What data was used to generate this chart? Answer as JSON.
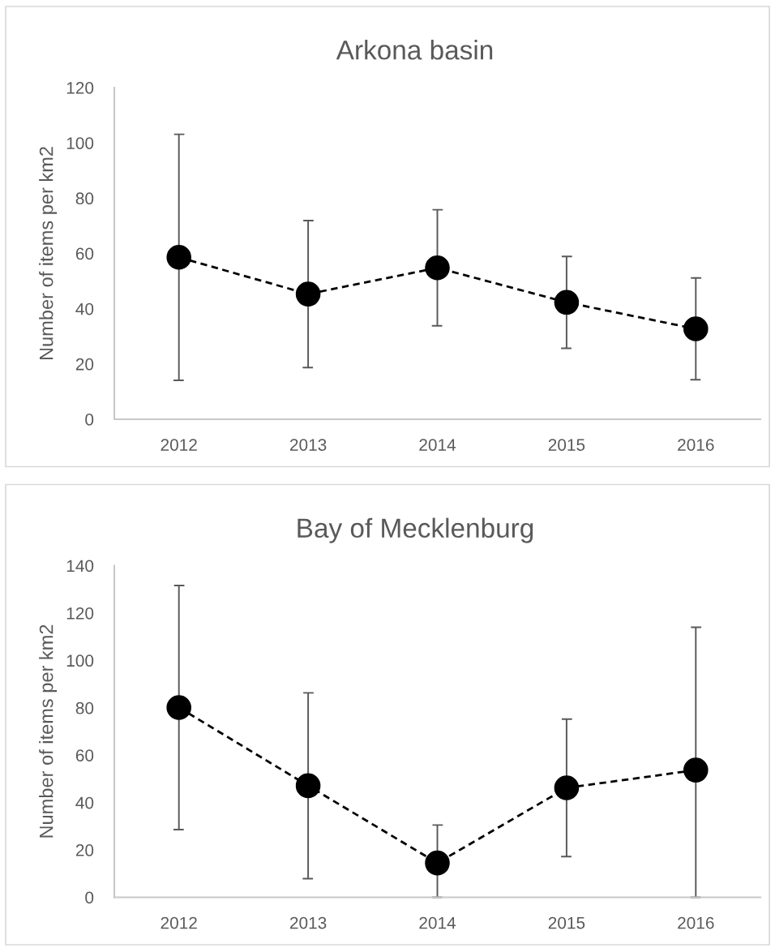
{
  "chart_data": [
    {
      "type": "line",
      "title": "Arkona basin",
      "ylabel": "Number of items per km2",
      "categories": [
        "2012",
        "2013",
        "2014",
        "2015",
        "2016"
      ],
      "series": [
        {
          "color": "#000000",
          "values": [
            58.6,
            45.3,
            54.8,
            42.3,
            32.7
          ],
          "errors": [
            44.5,
            26.6,
            21.0,
            16.6,
            18.4
          ]
        }
      ],
      "ylim": [
        0,
        120
      ],
      "yticks": [
        0,
        20,
        40,
        60,
        80,
        100,
        120
      ],
      "marker": "circle",
      "line_style": "dashed",
      "grid": false
    },
    {
      "type": "line",
      "title": "Bay of Mecklenburg",
      "ylabel": "Number of items per km2",
      "categories": [
        "2012",
        "2013",
        "2014",
        "2015",
        "2016"
      ],
      "series": [
        {
          "color": "#000000",
          "values": [
            80.1,
            47.1,
            14.5,
            46.2,
            53.7
          ],
          "errors": [
            51.5,
            39.2,
            [
              0,
              30.5
            ],
            29.0,
            [
              0,
              114.0
            ]
          ]
        }
      ],
      "ylim": [
        0,
        140
      ],
      "yticks": [
        0,
        20,
        40,
        60,
        80,
        100,
        120,
        140
      ],
      "marker": "circle",
      "line_style": "dashed",
      "grid": false
    }
  ]
}
